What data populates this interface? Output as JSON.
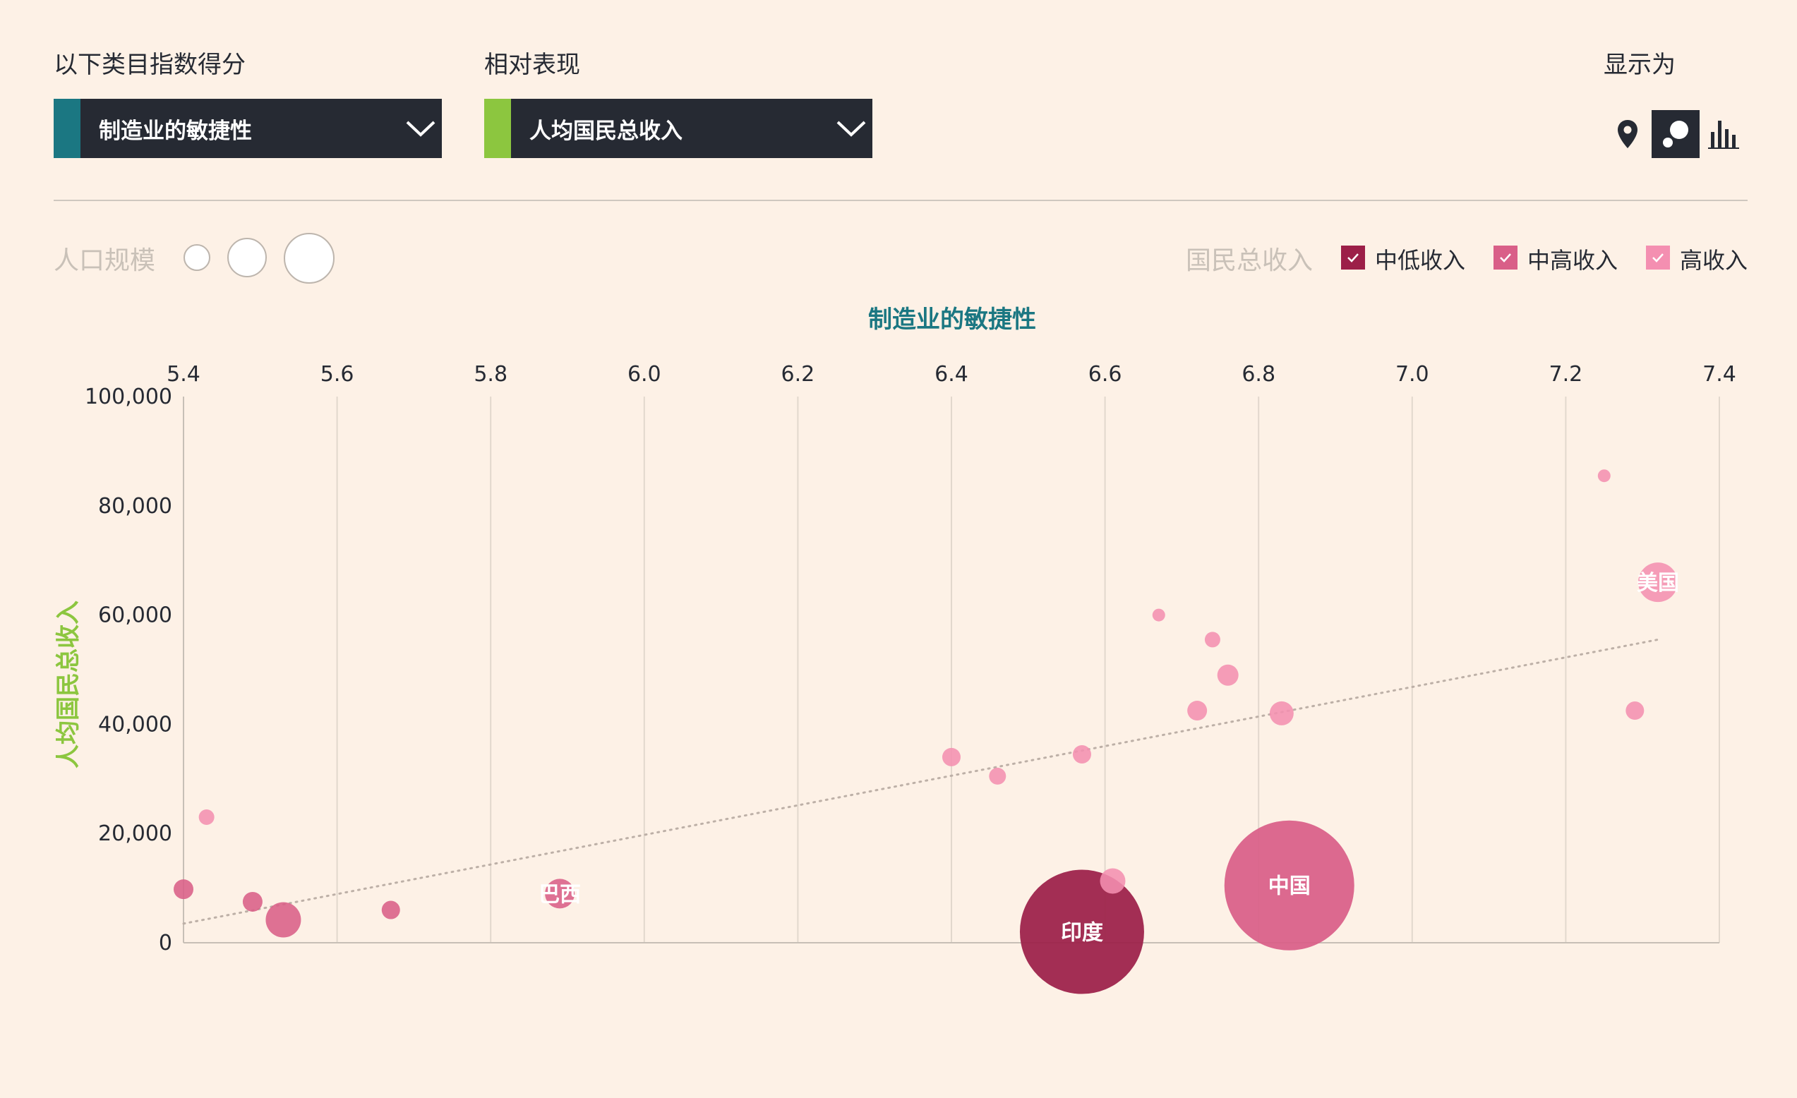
{
  "controls": {
    "category_label": "以下类目指数得分",
    "category_value": "制造业的敏捷性",
    "category_color": "#1b7782",
    "relative_label": "相对表现",
    "relative_value": "人均国民总收入",
    "relative_color": "#8cc63f",
    "display_label": "显示为",
    "views": [
      "map-pin-icon",
      "bubble-chart-icon",
      "bar-chart-icon"
    ],
    "active_view": "bubble-chart-icon"
  },
  "legend": {
    "size_label": "人口规模",
    "gni_label": "国民总收入",
    "items": [
      {
        "label": "中低收入",
        "color": "#9c1f48",
        "checked": true
      },
      {
        "label": "中高收入",
        "color": "#d95f88",
        "checked": true
      },
      {
        "label": "高收入",
        "color": "#f48fb1",
        "checked": true
      }
    ]
  },
  "chart_data": {
    "type": "scatter",
    "title": "制造业的敏捷性",
    "xlabel": "制造业的敏捷性",
    "ylabel": "人均国民总收入",
    "xlim": [
      5.4,
      7.4
    ],
    "ylim": [
      0,
      100000
    ],
    "xticks": [
      "5.4",
      "5.6",
      "5.8",
      "6.0",
      "6.2",
      "6.4",
      "6.6",
      "6.8",
      "7.0",
      "7.2",
      "7.4"
    ],
    "yticks": [
      "0",
      "20,000",
      "40,000",
      "60,000",
      "80,000",
      "100,000"
    ],
    "grid": "vertical",
    "trendline": {
      "x": [
        5.4,
        7.32
      ],
      "y": [
        3500,
        55500
      ],
      "style": "dotted"
    },
    "series": [
      {
        "name": "中低收入",
        "color": "#9c1f48",
        "points": [
          {
            "x": 6.57,
            "y": 2000,
            "r": 88,
            "label": "印度"
          }
        ]
      },
      {
        "name": "中高收入",
        "color": "#d95f88",
        "points": [
          {
            "x": 6.84,
            "y": 10500,
            "r": 92,
            "label": "中国"
          },
          {
            "x": 5.89,
            "y": 9000,
            "r": 21,
            "label": "巴西"
          },
          {
            "x": 5.4,
            "y": 9800,
            "r": 14
          },
          {
            "x": 5.49,
            "y": 7500,
            "r": 14
          },
          {
            "x": 5.53,
            "y": 4200,
            "r": 25
          },
          {
            "x": 5.67,
            "y": 6000,
            "r": 13
          }
        ]
      },
      {
        "name": "高收入",
        "color": "#f48fb1",
        "points": [
          {
            "x": 7.32,
            "y": 66000,
            "r": 28,
            "label": "美国"
          },
          {
            "x": 5.43,
            "y": 23000,
            "r": 11
          },
          {
            "x": 6.4,
            "y": 34000,
            "r": 13
          },
          {
            "x": 6.46,
            "y": 30500,
            "r": 12
          },
          {
            "x": 6.57,
            "y": 34500,
            "r": 13
          },
          {
            "x": 6.61,
            "y": 11300,
            "r": 18
          },
          {
            "x": 6.67,
            "y": 60000,
            "r": 9
          },
          {
            "x": 6.72,
            "y": 42500,
            "r": 14
          },
          {
            "x": 6.74,
            "y": 55500,
            "r": 11
          },
          {
            "x": 6.76,
            "y": 49000,
            "r": 15
          },
          {
            "x": 6.83,
            "y": 42000,
            "r": 17
          },
          {
            "x": 7.25,
            "y": 85500,
            "r": 9
          },
          {
            "x": 7.29,
            "y": 42500,
            "r": 13
          }
        ]
      }
    ]
  }
}
